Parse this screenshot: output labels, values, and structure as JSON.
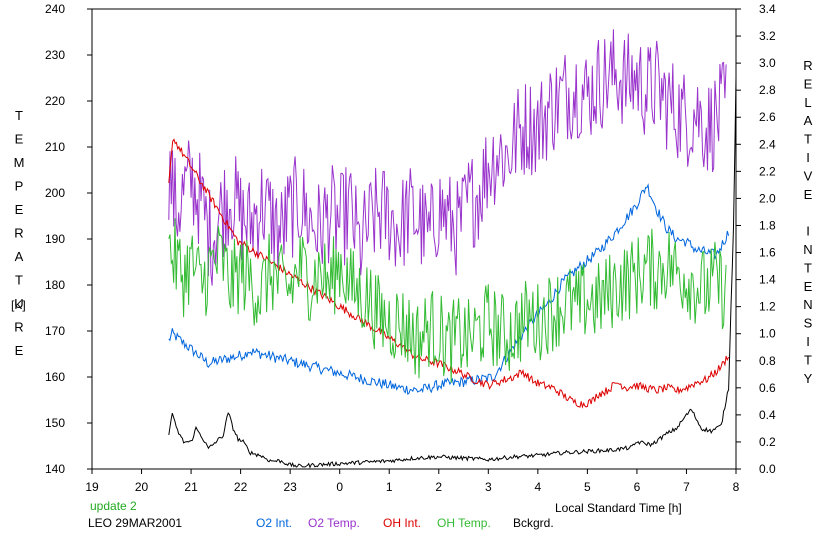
{
  "chart_data": {
    "type": "line",
    "xlabel": "Local Standard Time [h]",
    "ylabel_left": "TEMPERATURE",
    "ylabel_left_unit": "[K]",
    "ylabel_right": "RELATIVE INTENSITY",
    "x_ticks": [
      "19",
      "20",
      "21",
      "22",
      "23",
      "0",
      "1",
      "2",
      "3",
      "4",
      "5",
      "6",
      "7",
      "8"
    ],
    "xlim": [
      19,
      32
    ],
    "ylim_left": [
      140,
      240
    ],
    "y_ticks_left": [
      140,
      150,
      160,
      170,
      180,
      190,
      200,
      210,
      220,
      230,
      240
    ],
    "ylim_right": [
      0.0,
      3.4
    ],
    "y_ticks_right": [
      "0.0",
      "0.2",
      "0.4",
      "0.6",
      "0.8",
      "1.0",
      "1.2",
      "1.4",
      "1.6",
      "1.8",
      "2.0",
      "2.2",
      "2.4",
      "2.6",
      "2.8",
      "3.0",
      "3.2",
      "3.4"
    ],
    "grid": false,
    "legend_placement": "bottom",
    "series": [
      {
        "name": "O2 Int.",
        "axis": "right",
        "color": "#0066dd",
        "points": [
          [
            20.55,
            0.95
          ],
          [
            20.62,
            1.0
          ],
          [
            21.35,
            0.78
          ],
          [
            22.1,
            0.85
          ],
          [
            22.15,
            0.88
          ],
          [
            22.2,
            0.87
          ],
          [
            25.2,
            0.6
          ],
          [
            25.6,
            0.58
          ],
          [
            26.0,
            0.62
          ],
          [
            26.4,
            0.64
          ],
          [
            26.8,
            0.66
          ],
          [
            27.1,
            0.68
          ],
          [
            27.5,
            0.9
          ],
          [
            27.9,
            1.1
          ],
          [
            28.2,
            1.22
          ],
          [
            28.5,
            1.38
          ],
          [
            28.8,
            1.48
          ],
          [
            29.2,
            1.6
          ],
          [
            29.5,
            1.72
          ],
          [
            29.8,
            1.86
          ],
          [
            30.0,
            1.96
          ],
          [
            30.2,
            2.1
          ],
          [
            30.4,
            1.92
          ],
          [
            30.6,
            1.78
          ],
          [
            30.8,
            1.7
          ],
          [
            31.0,
            1.68
          ],
          [
            31.2,
            1.62
          ],
          [
            31.4,
            1.6
          ],
          [
            31.6,
            1.58
          ],
          [
            31.75,
            1.68
          ],
          [
            31.85,
            1.75
          ]
        ]
      },
      {
        "name": "O2 Temp.",
        "axis": "left",
        "color": "#9933cc",
        "points": [
          [
            20.55,
            205
          ],
          [
            20.7,
            196
          ],
          [
            20.85,
            200
          ],
          [
            21.0,
            203
          ],
          [
            21.2,
            198
          ],
          [
            21.4,
            190
          ],
          [
            21.6,
            196
          ],
          [
            21.8,
            200
          ],
          [
            22.0,
            195
          ],
          [
            22.2,
            193
          ],
          [
            22.4,
            198
          ],
          [
            22.6,
            195
          ],
          [
            22.8,
            191
          ],
          [
            23.0,
            196
          ],
          [
            23.2,
            198
          ],
          [
            23.4,
            194
          ],
          [
            23.6,
            192
          ],
          [
            23.8,
            196
          ],
          [
            24.0,
            193
          ],
          [
            24.2,
            197
          ],
          [
            24.4,
            188
          ],
          [
            24.6,
            193
          ],
          [
            24.8,
            196
          ],
          [
            25.0,
            195
          ],
          [
            25.2,
            192
          ],
          [
            25.4,
            196
          ],
          [
            25.6,
            194
          ],
          [
            25.8,
            190
          ],
          [
            26.0,
            197
          ],
          [
            26.2,
            194
          ],
          [
            26.4,
            192
          ],
          [
            26.6,
            198
          ],
          [
            26.8,
            200
          ],
          [
            27.0,
            206
          ],
          [
            27.2,
            209
          ],
          [
            27.4,
            208
          ],
          [
            27.6,
            213
          ],
          [
            27.8,
            215
          ],
          [
            28.0,
            214
          ],
          [
            28.2,
            218
          ],
          [
            28.4,
            220
          ],
          [
            28.6,
            222
          ],
          [
            28.8,
            223
          ],
          [
            29.0,
            221
          ],
          [
            29.2,
            224
          ],
          [
            29.4,
            225
          ],
          [
            29.6,
            226
          ],
          [
            29.8,
            224
          ],
          [
            30.0,
            225
          ],
          [
            30.2,
            222
          ],
          [
            30.4,
            223
          ],
          [
            30.6,
            220
          ],
          [
            30.8,
            218
          ],
          [
            31.0,
            216
          ],
          [
            31.2,
            218
          ],
          [
            31.4,
            214
          ],
          [
            31.6,
            216
          ],
          [
            31.8,
            219
          ]
        ]
      },
      {
        "name": "OH Int.",
        "axis": "right",
        "color": "#dd0000",
        "points": [
          [
            20.55,
            2.1
          ],
          [
            20.6,
            2.3
          ],
          [
            20.63,
            2.45
          ],
          [
            21.95,
            1.68
          ],
          [
            22.05,
            1.66
          ],
          [
            25.2,
            0.92
          ],
          [
            25.4,
            0.86
          ],
          [
            25.6,
            0.82
          ],
          [
            25.8,
            0.8
          ],
          [
            26.0,
            0.78
          ],
          [
            26.2,
            0.75
          ],
          [
            26.4,
            0.72
          ],
          [
            26.6,
            0.68
          ],
          [
            26.8,
            0.65
          ],
          [
            27.0,
            0.62
          ],
          [
            27.5,
            0.68
          ],
          [
            27.7,
            0.72
          ],
          [
            27.9,
            0.65
          ],
          [
            28.1,
            0.62
          ],
          [
            28.3,
            0.6
          ],
          [
            28.5,
            0.55
          ],
          [
            28.7,
            0.5
          ],
          [
            28.9,
            0.48
          ],
          [
            29.1,
            0.5
          ],
          [
            29.2,
            0.55
          ],
          [
            29.4,
            0.58
          ],
          [
            29.6,
            0.64
          ],
          [
            29.8,
            0.6
          ],
          [
            29.95,
            0.62
          ],
          [
            30.4,
            0.58
          ],
          [
            30.6,
            0.6
          ],
          [
            30.8,
            0.58
          ],
          [
            31.0,
            0.6
          ],
          [
            31.2,
            0.64
          ],
          [
            31.4,
            0.66
          ],
          [
            31.6,
            0.72
          ],
          [
            31.75,
            0.78
          ],
          [
            31.85,
            0.85
          ]
        ]
      },
      {
        "name": "OH Temp.",
        "axis": "left",
        "color": "#33bb33",
        "points": [
          [
            20.55,
            188
          ],
          [
            20.7,
            185
          ],
          [
            20.85,
            182
          ],
          [
            21.0,
            185
          ],
          [
            21.2,
            180
          ],
          [
            21.4,
            184
          ],
          [
            21.6,
            186
          ],
          [
            21.8,
            180
          ],
          [
            22.0,
            183
          ],
          [
            22.2,
            181
          ],
          [
            22.4,
            178
          ],
          [
            22.6,
            183
          ],
          [
            22.8,
            180
          ],
          [
            23.0,
            179
          ],
          [
            23.2,
            184
          ],
          [
            23.4,
            181
          ],
          [
            23.6,
            183
          ],
          [
            23.8,
            180
          ],
          [
            24.0,
            185
          ],
          [
            24.2,
            180
          ],
          [
            24.4,
            178
          ],
          [
            24.6,
            177
          ],
          [
            24.8,
            173
          ],
          [
            25.0,
            172
          ],
          [
            25.2,
            172
          ],
          [
            25.4,
            170
          ],
          [
            25.6,
            168
          ],
          [
            25.8,
            171
          ],
          [
            26.0,
            170
          ],
          [
            26.2,
            167
          ],
          [
            26.4,
            169
          ],
          [
            26.6,
            168
          ],
          [
            26.8,
            170
          ],
          [
            27.0,
            172
          ],
          [
            27.2,
            170
          ],
          [
            27.4,
            169
          ],
          [
            27.6,
            171
          ],
          [
            27.8,
            173
          ],
          [
            28.0,
            172
          ],
          [
            28.2,
            174
          ],
          [
            28.4,
            175
          ],
          [
            28.6,
            176
          ],
          [
            28.8,
            175
          ],
          [
            29.0,
            177
          ],
          [
            29.2,
            176
          ],
          [
            29.4,
            178
          ],
          [
            29.6,
            180
          ],
          [
            29.8,
            181
          ],
          [
            30.0,
            182
          ],
          [
            30.2,
            184
          ],
          [
            30.4,
            183
          ],
          [
            30.6,
            185
          ],
          [
            30.8,
            183
          ],
          [
            31.0,
            182
          ],
          [
            31.2,
            180
          ],
          [
            31.4,
            179
          ],
          [
            31.6,
            181
          ],
          [
            31.8,
            178
          ]
        ]
      },
      {
        "name": "Bckgrd.",
        "axis": "right",
        "color": "#000000",
        "points": [
          [
            20.55,
            0.25
          ],
          [
            20.62,
            0.42
          ],
          [
            20.7,
            0.3
          ],
          [
            20.85,
            0.2
          ],
          [
            21.0,
            0.2
          ],
          [
            21.1,
            0.3
          ],
          [
            21.2,
            0.25
          ],
          [
            21.35,
            0.15
          ],
          [
            21.5,
            0.2
          ],
          [
            21.65,
            0.25
          ],
          [
            21.75,
            0.42
          ],
          [
            21.85,
            0.3
          ],
          [
            21.95,
            0.22
          ],
          [
            22.05,
            0.2
          ],
          [
            22.2,
            0.12
          ],
          [
            22.4,
            0.1
          ],
          [
            22.6,
            0.06
          ],
          [
            22.8,
            0.06
          ],
          [
            23.0,
            0.03
          ],
          [
            23.2,
            0.02
          ],
          [
            23.5,
            0.03
          ],
          [
            24.0,
            0.04
          ],
          [
            24.5,
            0.05
          ],
          [
            25.0,
            0.06
          ],
          [
            25.5,
            0.08
          ],
          [
            26.0,
            0.09
          ],
          [
            26.5,
            0.08
          ],
          [
            27.0,
            0.07
          ],
          [
            27.5,
            0.09
          ],
          [
            28.0,
            0.1
          ],
          [
            28.5,
            0.12
          ],
          [
            29.0,
            0.13
          ],
          [
            29.5,
            0.14
          ],
          [
            29.9,
            0.16
          ],
          [
            30.0,
            0.2
          ],
          [
            30.3,
            0.18
          ],
          [
            30.6,
            0.26
          ],
          [
            30.8,
            0.3
          ],
          [
            31.0,
            0.4
          ],
          [
            31.1,
            0.44
          ],
          [
            31.3,
            0.3
          ],
          [
            31.5,
            0.28
          ],
          [
            31.7,
            0.32
          ],
          [
            31.85,
            0.6
          ],
          [
            31.95,
            1.8
          ],
          [
            32.0,
            2.9
          ]
        ]
      }
    ]
  },
  "footer": {
    "update_label": "update 2",
    "station_label": "LEO 29MAR2001"
  },
  "colors": {
    "background": "#ffffff",
    "axis": "#000000",
    "update_label": "#22aa22"
  }
}
